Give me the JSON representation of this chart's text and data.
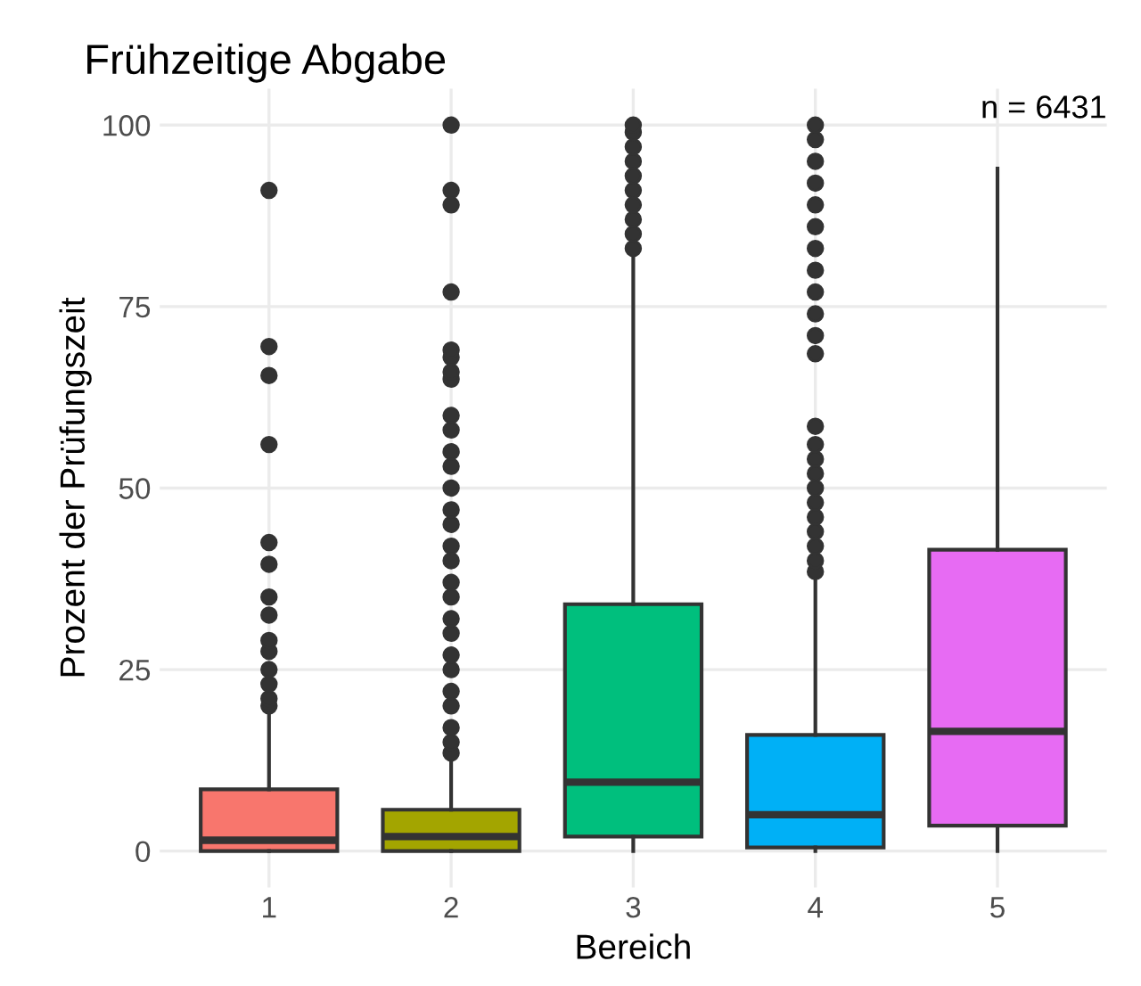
{
  "chart_data": {
    "type": "box",
    "title": "Frühzeitige Abgabe",
    "xlabel": "Bereich",
    "ylabel": "Prozent der Prüfungszeit",
    "categories": [
      "1",
      "2",
      "3",
      "4",
      "5"
    ],
    "colors": [
      "#f8766d",
      "#a3a500",
      "#00bf7d",
      "#00b0f6",
      "#e76bf3"
    ],
    "boxes": [
      {
        "low": 0,
        "q1": 0,
        "median": 1.5,
        "q3": 8.5,
        "high": 19,
        "outliers": [
          20,
          21,
          23,
          25,
          27.5,
          29,
          32.5,
          35,
          39.5,
          42.5,
          56,
          65.5,
          69.5,
          91
        ]
      },
      {
        "low": 0,
        "q1": 0,
        "median": 2,
        "q3": 5.7,
        "high": 12.5,
        "outliers": [
          13.5,
          15,
          17,
          20,
          22,
          25,
          27,
          30,
          32,
          35,
          37,
          40,
          42,
          45,
          47,
          50,
          53,
          55,
          58,
          60,
          65,
          66,
          68,
          69,
          77,
          89,
          91,
          100
        ]
      },
      {
        "low": 0,
        "q1": 2,
        "median": 9.5,
        "q3": 34,
        "high": 82.5,
        "outliers": [
          83,
          85,
          87,
          89,
          91,
          93,
          95,
          97,
          99,
          100
        ]
      },
      {
        "low": 0,
        "q1": 0.5,
        "median": 5,
        "q3": 16,
        "high": 37.5,
        "outliers": [
          38.5,
          40,
          42,
          44,
          46,
          48,
          50,
          52,
          54,
          56,
          58.5,
          68.5,
          71,
          74,
          77,
          80,
          83,
          86,
          89,
          92,
          95,
          98,
          100
        ]
      },
      {
        "low": 0,
        "q1": 3.5,
        "median": 16.5,
        "q3": 41.5,
        "high": 94
      }
    ],
    "ylim": [
      -5,
      105
    ],
    "yticks": [
      0,
      25,
      50,
      75,
      100
    ],
    "grid": true,
    "annotations": [
      "n = 6431"
    ]
  }
}
